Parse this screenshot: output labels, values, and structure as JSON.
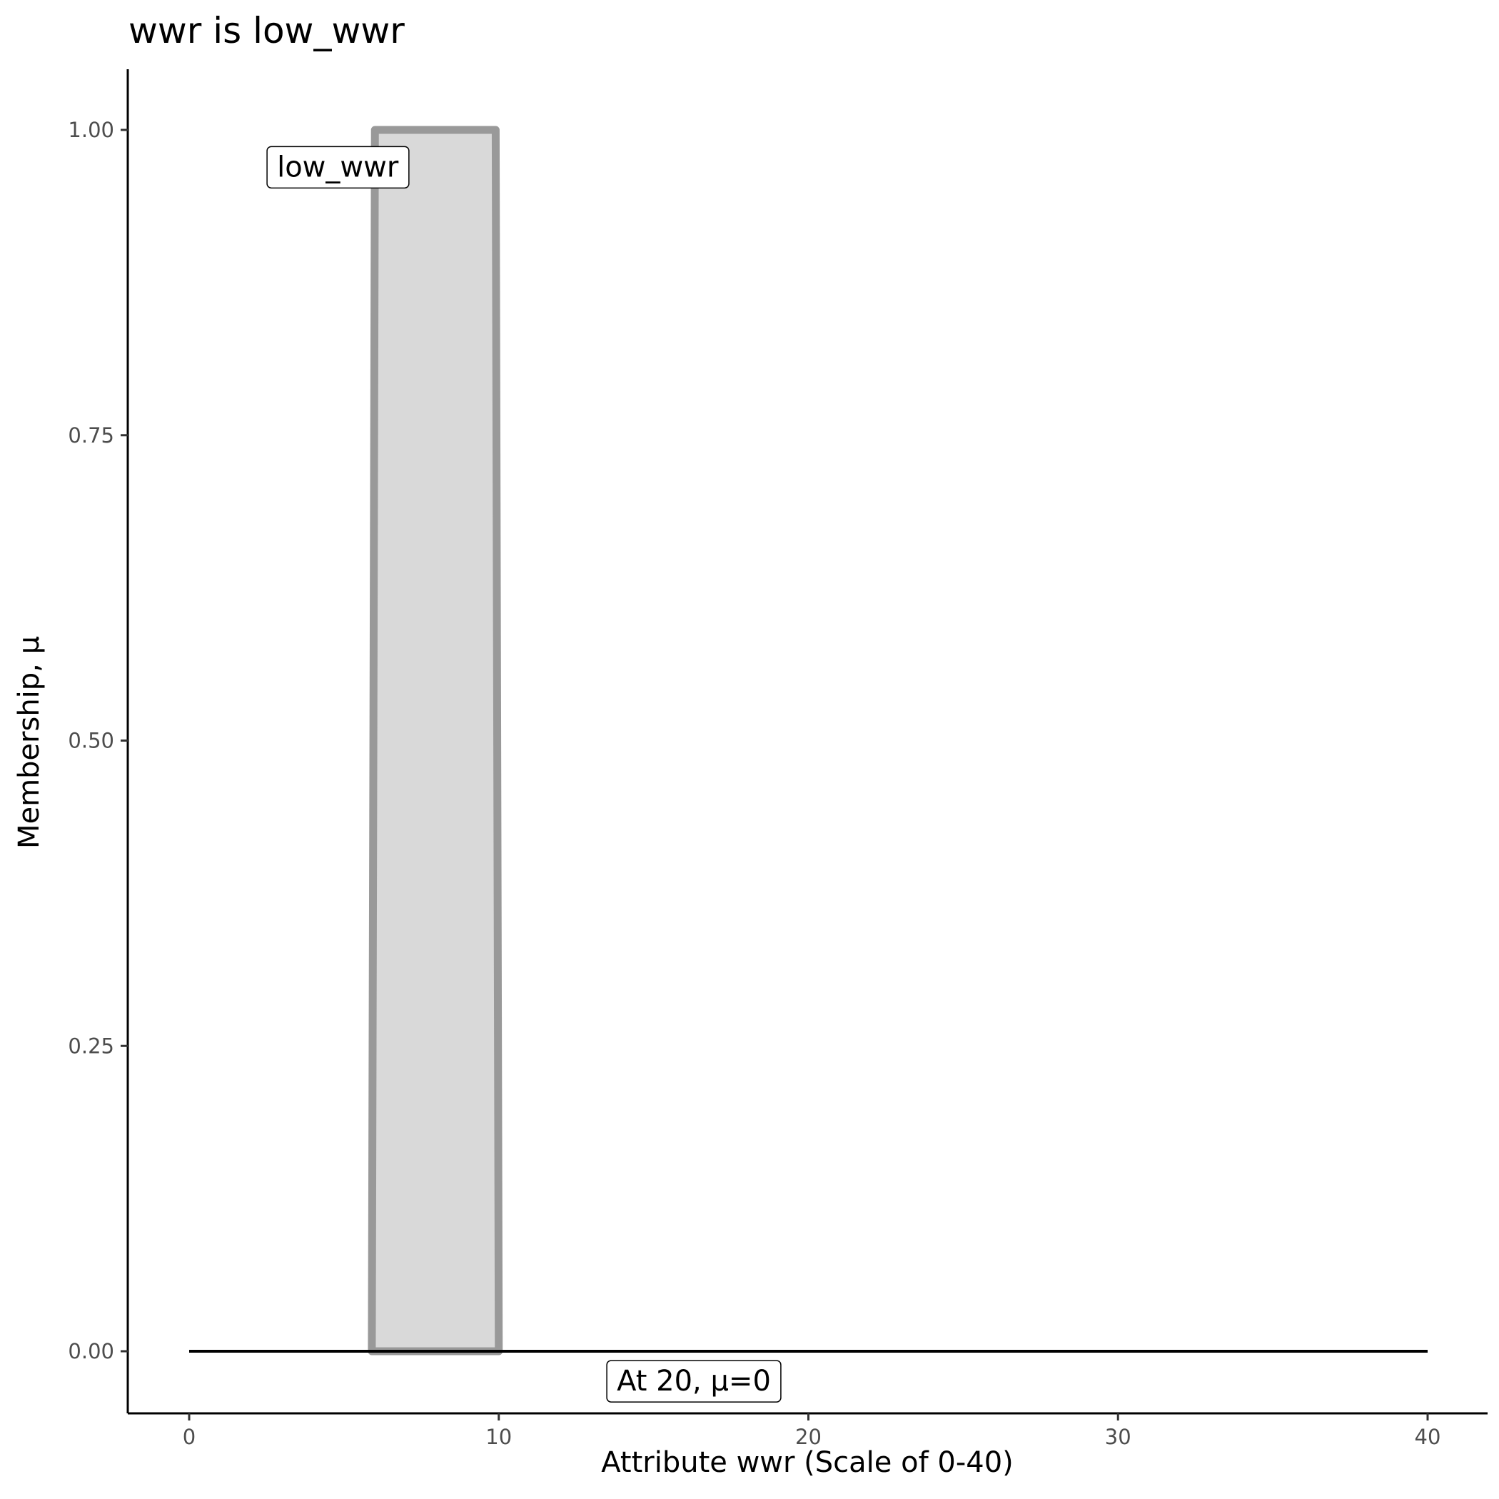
{
  "chart_data": {
    "type": "area",
    "title": "wwr is low_wwr",
    "xlabel": "Attribute wwr (Scale of 0-40)",
    "ylabel": "Membership, μ",
    "xlim": [
      -2,
      42
    ],
    "ylim": [
      -0.05,
      1.05
    ],
    "x_ticks": [
      0,
      10,
      20,
      30,
      40
    ],
    "x_tick_labels": [
      "0",
      "10",
      "20",
      "30",
      "40"
    ],
    "y_ticks": [
      0,
      0.25,
      0.5,
      0.75,
      1
    ],
    "y_tick_labels": [
      "0.00",
      "0.25",
      "0.50",
      "0.75",
      "1.00"
    ],
    "grid": false,
    "membership_function": {
      "name": "low_wwr",
      "points": [
        [
          5.9,
          0
        ],
        [
          6,
          1
        ],
        [
          9.9,
          1
        ],
        [
          10,
          0
        ]
      ],
      "fill_color": "#d9d9d9",
      "line_color": "#999999"
    },
    "baseline": {
      "x": [
        0,
        40
      ],
      "y": 0,
      "color": "#000000"
    },
    "annotations": [
      {
        "text": "low_wwr",
        "x": 4.8,
        "y": 0.97
      },
      {
        "text": "At 20, μ=0",
        "x": 16.3,
        "y": -0.024
      }
    ]
  }
}
